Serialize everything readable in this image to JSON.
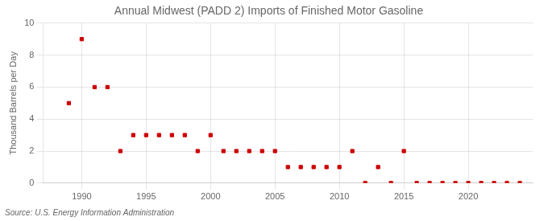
{
  "chart_data": {
    "type": "scatter",
    "title": "Annual Midwest (PADD 2) Imports of Finished Motor Gasoline",
    "ylabel": "Thousand Barrels per Day",
    "annotation": "Source: U.S. Energy Information Administration",
    "x": [
      1989,
      1990,
      1991,
      1992,
      1993,
      1994,
      1995,
      1996,
      1997,
      1998,
      1999,
      2000,
      2001,
      2002,
      2003,
      2004,
      2005,
      2006,
      2007,
      2008,
      2009,
      2010,
      2011,
      2012,
      2013,
      2014,
      2015,
      2016,
      2017,
      2018,
      2019,
      2020,
      2021,
      2022,
      2023,
      2024
    ],
    "values": [
      5,
      9,
      6,
      6,
      2,
      3,
      3,
      3,
      3,
      3,
      2,
      3,
      2,
      2,
      2,
      2,
      2,
      1,
      1,
      1,
      1,
      1,
      2,
      0,
      1,
      0,
      2,
      0,
      0,
      0,
      0,
      0,
      0,
      0,
      0,
      0
    ],
    "color": "#cc0000",
    "marker": "square",
    "xlim": [
      1987,
      2025
    ],
    "xticks": [
      1990,
      1995,
      2000,
      2005,
      2010,
      2015,
      2020
    ],
    "ylim": [
      0,
      10
    ],
    "yticks": [
      0,
      2,
      4,
      6,
      8,
      10
    ],
    "grid": true
  }
}
